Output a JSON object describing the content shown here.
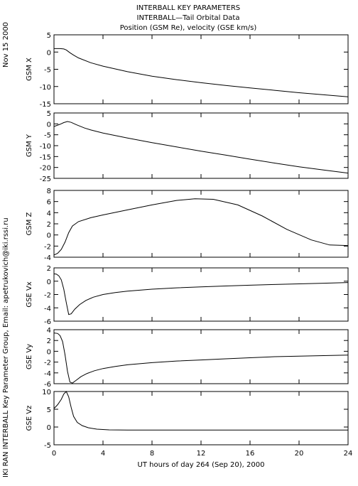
{
  "header": {
    "title_line1": "INTERBALL KEY PARAMETERS",
    "title_line2": "INTERBALL—Tail Orbital Data",
    "title_line3": "Position (GSM Re), velocity (GSE km/s)"
  },
  "side_labels": {
    "date": "Nov 15 2000",
    "credit": "IKI RAN INTERBALL Key Parameter Group, Email: apetrukovich@iki.rssi.ru"
  },
  "chart_data": [
    {
      "type": "line",
      "ylabel": "GSM X",
      "ylim": [
        -15,
        5
      ],
      "yticks": [
        5,
        0,
        -5,
        -10,
        -15
      ],
      "x": [
        0,
        0.5,
        0.8,
        1.0,
        1.3,
        1.6,
        2.0,
        3,
        4,
        6,
        8,
        10,
        12,
        14,
        16,
        18,
        20,
        22,
        24
      ],
      "y": [
        1.0,
        1.0,
        0.9,
        0.6,
        -0.2,
        -0.9,
        -1.7,
        -3.1,
        -4.1,
        -5.7,
        -7.0,
        -8.0,
        -8.9,
        -9.7,
        -10.4,
        -11.1,
        -11.8,
        -12.4,
        -13.0
      ]
    },
    {
      "type": "line",
      "ylabel": "GSM Y",
      "ylim": [
        -25,
        5
      ],
      "yticks": [
        5,
        0,
        -5,
        -10,
        -15,
        -20,
        -25
      ],
      "x": [
        0,
        0.5,
        0.8,
        1.1,
        1.4,
        1.8,
        2.5,
        3,
        4,
        6,
        8,
        10,
        12,
        14,
        16,
        18,
        20,
        22,
        24
      ],
      "y": [
        -1.2,
        -0.2,
        0.6,
        1.1,
        0.7,
        -0.3,
        -1.9,
        -2.8,
        -4.2,
        -6.5,
        -8.6,
        -10.6,
        -12.5,
        -14.3,
        -16.2,
        -18.0,
        -19.7,
        -21.2,
        -22.6
      ]
    },
    {
      "type": "line",
      "ylabel": "GSM Z",
      "ylim": [
        -4,
        8
      ],
      "yticks": [
        8,
        6,
        4,
        2,
        0,
        -2,
        -4
      ],
      "x": [
        0,
        0.3,
        0.6,
        0.9,
        1.2,
        1.5,
        2,
        3,
        4,
        6,
        8,
        10,
        11.5,
        13,
        15,
        17,
        19,
        21,
        22.5,
        24
      ],
      "y": [
        -3.6,
        -3.3,
        -2.6,
        -1.3,
        0.4,
        1.6,
        2.4,
        3.1,
        3.6,
        4.5,
        5.4,
        6.2,
        6.5,
        6.4,
        5.4,
        3.4,
        1.0,
        -0.9,
        -1.8,
        -1.9
      ]
    },
    {
      "type": "line",
      "ylabel": "GSE Vx",
      "ylim": [
        -6,
        2
      ],
      "yticks": [
        2,
        0,
        -2,
        -4,
        -6
      ],
      "x": [
        0,
        0.2,
        0.4,
        0.6,
        0.8,
        1.0,
        1.2,
        1.4,
        1.7,
        2.1,
        2.6,
        3.2,
        4,
        5,
        6,
        8,
        10,
        12,
        14,
        16,
        18,
        20,
        22,
        24
      ],
      "y": [
        1.1,
        1.05,
        0.8,
        0.2,
        -1.2,
        -3.2,
        -5.0,
        -4.9,
        -4.2,
        -3.5,
        -2.9,
        -2.4,
        -2.0,
        -1.7,
        -1.5,
        -1.2,
        -1.0,
        -0.85,
        -0.72,
        -0.6,
        -0.5,
        -0.4,
        -0.3,
        -0.2
      ]
    },
    {
      "type": "line",
      "ylabel": "GSE Vy",
      "ylim": [
        -6,
        4
      ],
      "yticks": [
        4,
        2,
        0,
        -2,
        -4,
        -6
      ],
      "x": [
        0,
        0.3,
        0.5,
        0.7,
        0.9,
        1.1,
        1.3,
        1.5,
        1.8,
        2.2,
        2.7,
        3.3,
        4,
        5,
        6,
        8,
        10,
        12,
        14,
        16,
        18,
        20,
        22,
        24
      ],
      "y": [
        3.4,
        3.3,
        2.9,
        1.8,
        -0.6,
        -3.7,
        -5.7,
        -5.9,
        -5.4,
        -4.7,
        -4.1,
        -3.6,
        -3.2,
        -2.8,
        -2.5,
        -2.1,
        -1.8,
        -1.6,
        -1.4,
        -1.2,
        -1.0,
        -0.9,
        -0.8,
        -0.7
      ]
    },
    {
      "type": "line",
      "ylabel": "GSE Vz",
      "ylim": [
        -5,
        10
      ],
      "yticks": [
        10,
        5,
        0,
        -5
      ],
      "x": [
        0,
        0.3,
        0.6,
        0.8,
        1.0,
        1.2,
        1.4,
        1.6,
        1.9,
        2.3,
        2.8,
        3.5,
        4.5,
        6,
        8,
        10,
        12,
        14,
        16,
        18,
        20,
        22,
        24
      ],
      "y": [
        5.2,
        6.3,
        7.8,
        9.3,
        10.0,
        8.5,
        5.5,
        3.0,
        1.3,
        0.4,
        -0.2,
        -0.6,
        -0.8,
        -0.85,
        -0.85,
        -0.85,
        -0.85,
        -0.85,
        -0.85,
        -0.85,
        -0.85,
        -0.85,
        -0.85
      ]
    }
  ],
  "x_axis": {
    "xlim": [
      0,
      24
    ],
    "ticks": [
      0,
      4,
      8,
      12,
      16,
      20,
      24
    ],
    "xlabel": "UT hours of day 264 (Sep 20), 2000"
  }
}
